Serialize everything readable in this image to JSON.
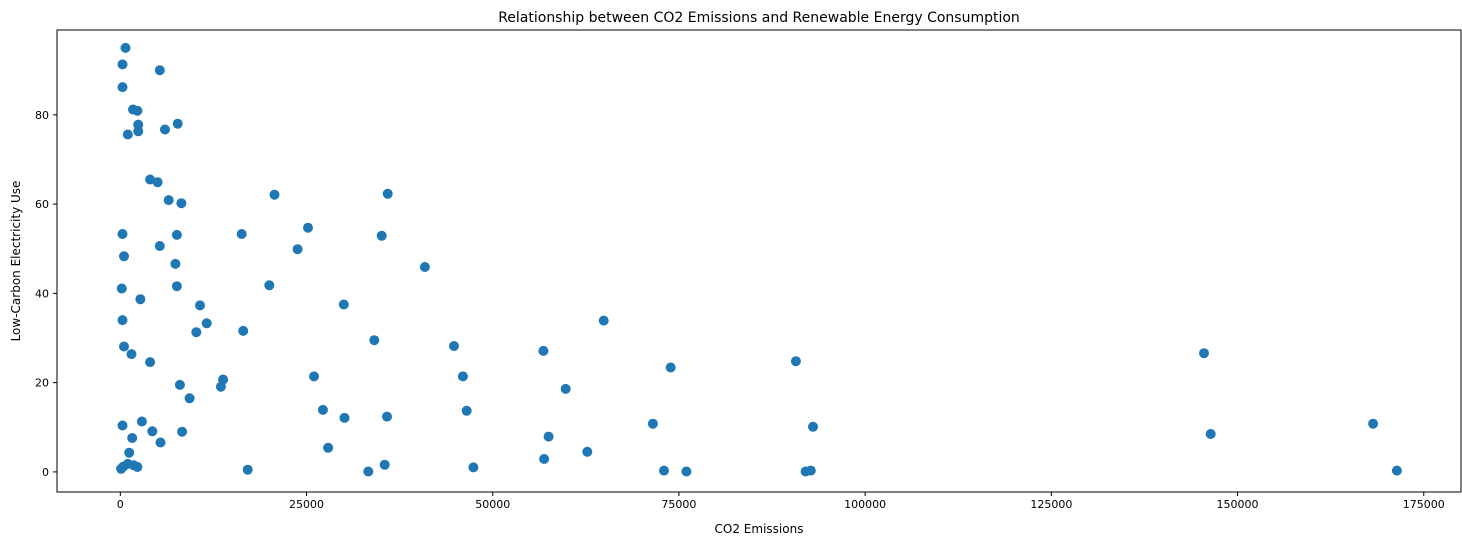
{
  "chart_data": {
    "type": "scatter",
    "title": "Relationship between CO2 Emissions and Renewable Energy Consumption",
    "xlabel": "CO2 Emissions",
    "ylabel": "Low-Carbon Electricity Use",
    "xlim": [
      -8500,
      180000
    ],
    "ylim": [
      -4.5,
      99
    ],
    "xticks": [
      0,
      25000,
      50000,
      75000,
      100000,
      125000,
      150000,
      175000
    ],
    "xtick_labels": [
      "0",
      "25000",
      "50000",
      "75000",
      "100000",
      "125000",
      "150000",
      "175000"
    ],
    "yticks": [
      0,
      20,
      40,
      60,
      80
    ],
    "ytick_labels": [
      "0",
      "20",
      "40",
      "60",
      "80"
    ],
    "grid": false,
    "color": "#1f77b4",
    "series": [
      {
        "x": [
          700,
          300,
          5300,
          300,
          1700,
          2300,
          7700,
          2400,
          1000,
          6000,
          2400,
          4000,
          5000,
          6500,
          8200,
          20700,
          35900,
          300,
          5300,
          7600,
          16300,
          25200,
          35100,
          23800,
          500,
          7400,
          40900,
          200,
          7600,
          2700,
          10700,
          30000,
          11600,
          300,
          10200,
          16500,
          64900,
          34100,
          44800,
          500,
          56800,
          1500,
          4000,
          90700,
          145500,
          73900,
          46000,
          26000,
          13800,
          8000,
          20000,
          59800,
          13500,
          9300,
          27200,
          46500,
          35800,
          30100,
          2900,
          71500,
          300,
          93000,
          8300,
          4300,
          57500,
          1600,
          146400,
          168200,
          5400,
          27900,
          62700,
          1200,
          56900,
          1000,
          1800,
          35500,
          400,
          2300,
          100,
          47400,
          17100,
          73000,
          171400,
          76000,
          92000,
          92700,
          33300
        ]
      },
      {
        "y": [
          95,
          91.3,
          90,
          86.2,
          81.2,
          80.9,
          78,
          77.8,
          75.6,
          76.7,
          76.3,
          65.5,
          64.9,
          60.9,
          60.2,
          62.1,
          62.3,
          53.3,
          50.6,
          53.1,
          53.3,
          54.7,
          52.9,
          49.9,
          48.3,
          46.6,
          45.9,
          41.1,
          41.6,
          38.7,
          37.3,
          37.5,
          33.3,
          34,
          31.3,
          31.6,
          33.9,
          29.5,
          28.2,
          28.1,
          27.1,
          26.4,
          24.6,
          24.8,
          26.6,
          23.4,
          21.4,
          21.4,
          20.7,
          19.5,
          41.8,
          18.6,
          19.1,
          16.5,
          13.9,
          13.7,
          12.4,
          12.1,
          11.3,
          10.8,
          10.4,
          10.1,
          9,
          9.1,
          7.9,
          7.6,
          8.5,
          10.8,
          6.6,
          5.4,
          4.5,
          4.3,
          2.9,
          1.8,
          1.5,
          1.6,
          1.2,
          1.1,
          0.7,
          1,
          0.5,
          0.3,
          0.3,
          0.1,
          0.1,
          0.3,
          0.1
        ]
      }
    ]
  }
}
